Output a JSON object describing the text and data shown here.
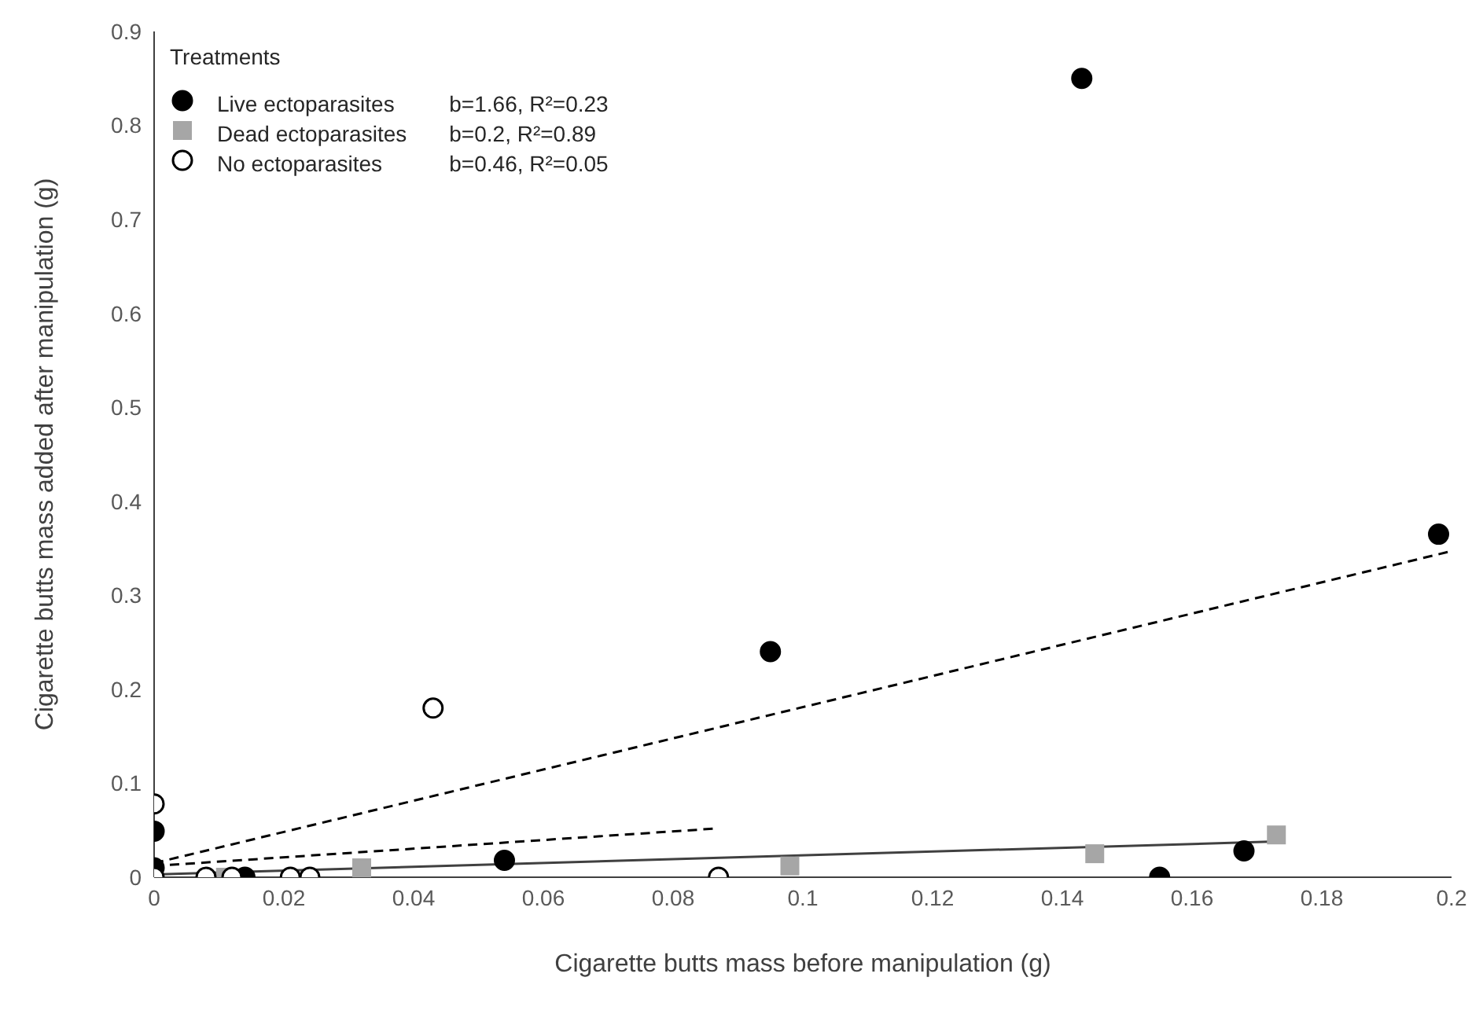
{
  "chart_data": {
    "type": "scatter",
    "xlabel": "Cigarette butts mass before manipulation (g)",
    "ylabel": "Cigarette butts mass added after manipulation (g)",
    "legend_title": "Treatments",
    "legend": "top left",
    "grid": false,
    "xlim": [
      0,
      0.2
    ],
    "xticks": [
      0,
      0.02,
      0.04,
      0.06,
      0.08,
      0.1,
      0.12,
      0.14,
      0.16,
      0.18,
      0.2
    ],
    "ylim": [
      0,
      0.9
    ],
    "yticks": [
      0,
      0.1,
      0.2,
      0.3,
      0.4,
      0.5,
      0.6,
      0.7,
      0.8,
      0.9
    ],
    "annotations": [
      "b=1.66, R²=0.23",
      "b=0.2, R²=0.89",
      "b=0.46, R²=0.05"
    ],
    "series": [
      {
        "name": "Live ectoparasites",
        "marker": "circle",
        "color": "#000000",
        "x": [
          0,
          0,
          0.014,
          0.054,
          0.095,
          0.143,
          0.155,
          0.168,
          0.198
        ],
        "values": [
          0.049,
          0.01,
          0,
          0.018,
          0.24,
          0.85,
          0,
          0.028,
          0.365
        ]
      },
      {
        "name": "Dead ectoparasites",
        "marker": "square",
        "color": "#a6a6a6",
        "x": [
          0.011,
          0.032,
          0.098,
          0.145,
          0.173
        ],
        "values": [
          0,
          0.01,
          0.012,
          0.025,
          0.045
        ]
      },
      {
        "name": "No ectoparasites",
        "marker": "circle",
        "color": "#ffffff",
        "x": [
          0,
          0,
          0.008,
          0.012,
          0.021,
          0.024,
          0.043,
          0.087
        ],
        "values": [
          0.078,
          0,
          0,
          0,
          0,
          0,
          0.18,
          0
        ]
      },
      {
        "type": "line",
        "line_style": "dashed",
        "color": "#000000",
        "x": [
          0,
          0.2
        ],
        "values": [
          0.015,
          0.347
        ]
      },
      {
        "type": "line",
        "line_style": "solid",
        "color": "#404040",
        "x": [
          0,
          0.173
        ],
        "values": [
          0.003,
          0.038
        ]
      },
      {
        "type": "line",
        "line_style": "dashed",
        "color": "#000000",
        "x": [
          0,
          0.087
        ],
        "values": [
          0.012,
          0.052
        ]
      }
    ]
  }
}
